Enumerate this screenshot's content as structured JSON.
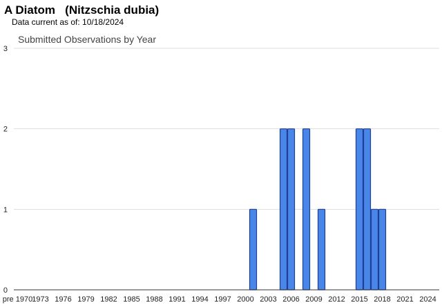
{
  "header": {
    "title": "A Diatom   (Nitzschia dubia)",
    "data_current": "Data current as of: 10/18/2024"
  },
  "chart_data": {
    "type": "bar",
    "title": "Submitted Observations by Year",
    "xlabel": "",
    "ylabel": "",
    "ylim": [
      0,
      3
    ],
    "y_ticks": [
      0,
      1,
      2,
      3
    ],
    "grid": true,
    "legend": "none",
    "x_tick_labels": [
      "pre 1970",
      "1973",
      "1976",
      "1979",
      "1982",
      "1985",
      "1988",
      "1991",
      "1994",
      "1997",
      "2000",
      "2003",
      "2006",
      "2009",
      "2012",
      "2015",
      "2018",
      "2021",
      "2024"
    ],
    "x_range": [
      1969,
      2025
    ],
    "bars": [
      {
        "year": 2000,
        "value": 1
      },
      {
        "year": 2004,
        "value": 2
      },
      {
        "year": 2005,
        "value": 2
      },
      {
        "year": 2007,
        "value": 2
      },
      {
        "year": 2009,
        "value": 1
      },
      {
        "year": 2014,
        "value": 2
      },
      {
        "year": 2015,
        "value": 2
      },
      {
        "year": 2016,
        "value": 1
      },
      {
        "year": 2017,
        "value": 1
      }
    ],
    "bar_color": "#4a86e8",
    "bar_edge_color": "#1c3f94"
  }
}
